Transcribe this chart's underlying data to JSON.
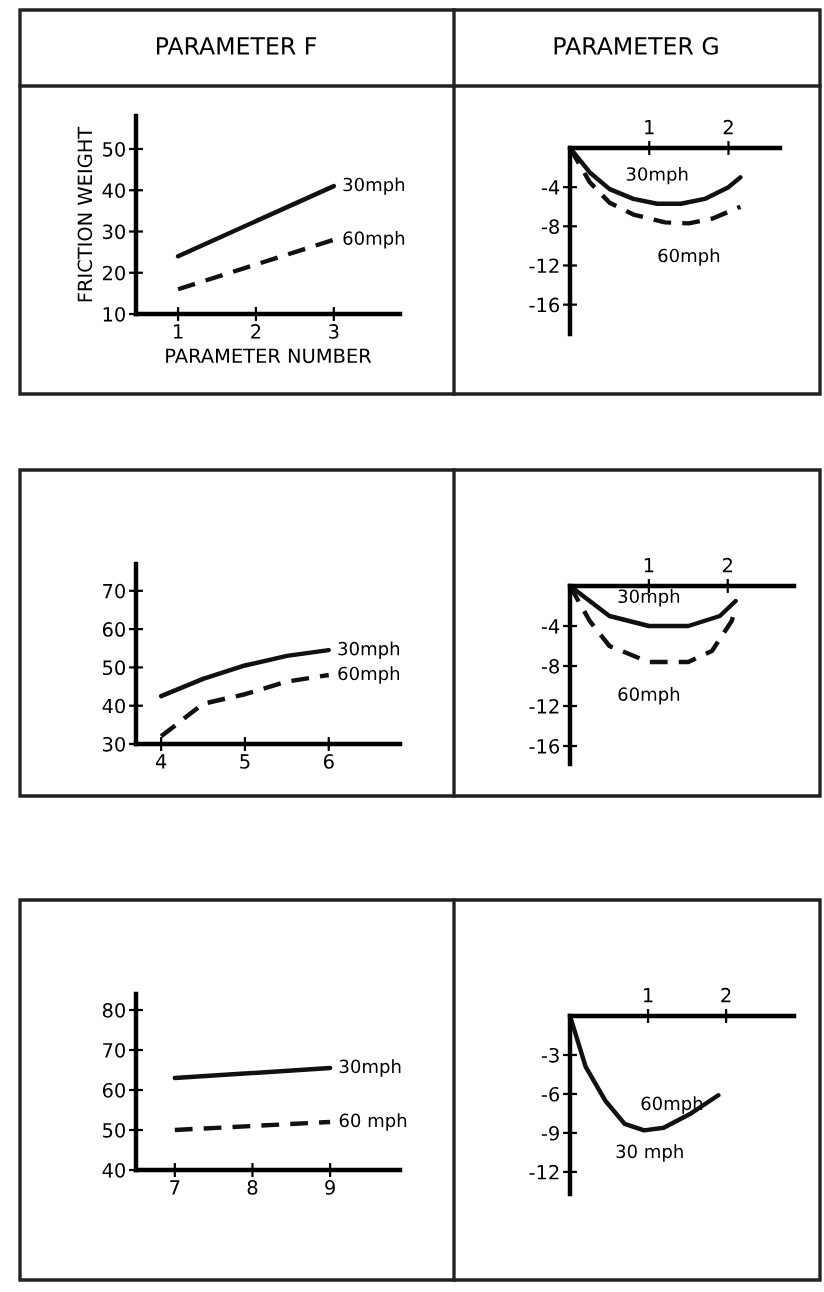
{
  "chart_data": [
    {
      "type": "line",
      "title": "PARAMETER F",
      "xlabel": "PARAMETER NUMBER",
      "ylabel": "FRICTION WEIGHT",
      "xlim": [
        0.46,
        3.85
      ],
      "ylim": [
        10,
        58
      ],
      "xticks": [
        1,
        2,
        3
      ],
      "yticks": [
        10,
        20,
        30,
        40,
        50
      ],
      "series": [
        {
          "name": "30mph",
          "color": "#111111",
          "line_style": "solid",
          "x": [
            1,
            3
          ],
          "values": [
            24,
            41
          ]
        },
        {
          "name": "60mph",
          "color": "#111111",
          "line_style": "dashed",
          "x": [
            1,
            3
          ],
          "values": [
            16,
            28
          ]
        }
      ]
    },
    {
      "type": "line",
      "title": "PARAMETER G",
      "xlim": [
        0,
        2.65
      ],
      "ylim": [
        -19,
        0
      ],
      "xticks": [
        1,
        2
      ],
      "yticks": [
        -4,
        -8,
        -12,
        -16
      ],
      "series": [
        {
          "name": "30mph",
          "color": "#111111",
          "line_style": "solid",
          "x": [
            0,
            0.25,
            0.5,
            0.8,
            1.1,
            1.4,
            1.7,
            2.0,
            2.15
          ],
          "values": [
            0,
            -2.5,
            -4.2,
            -5.2,
            -5.7,
            -5.7,
            -5.2,
            -4,
            -3
          ]
        },
        {
          "name": "60mph",
          "color": "#111111",
          "line_style": "dashed",
          "x": [
            0,
            0.25,
            0.5,
            0.8,
            1.2,
            1.5,
            1.8,
            2.15
          ],
          "values": [
            0,
            -3.5,
            -5.6,
            -6.8,
            -7.6,
            -7.7,
            -7.2,
            -6
          ]
        }
      ]
    },
    {
      "type": "line",
      "xlim": [
        3.7,
        6.85
      ],
      "ylim": [
        30,
        77
      ],
      "xticks": [
        4,
        5,
        6
      ],
      "yticks": [
        30,
        40,
        50,
        60,
        70
      ],
      "series": [
        {
          "name": "30mph",
          "color": "#111111",
          "line_style": "solid",
          "x": [
            4,
            4.5,
            5,
            5.5,
            6
          ],
          "values": [
            42.5,
            47,
            50.5,
            53,
            54.5
          ]
        },
        {
          "name": "60mph",
          "color": "#111111",
          "line_style": "dashed",
          "x": [
            4,
            4.5,
            5,
            5.5,
            6
          ],
          "values": [
            32,
            40.5,
            43,
            46.3,
            48
          ]
        }
      ]
    },
    {
      "type": "line",
      "xlim": [
        0,
        2.84
      ],
      "ylim": [
        -17.8,
        0
      ],
      "xticks": [
        1,
        2
      ],
      "yticks": [
        -4,
        -8,
        -12,
        -16
      ],
      "series": [
        {
          "name": "30mph",
          "color": "#111111",
          "line_style": "solid",
          "x": [
            0,
            0.5,
            1,
            1.5,
            1.9,
            2.1
          ],
          "values": [
            0,
            -3,
            -4,
            -4,
            -3,
            -1.5
          ]
        },
        {
          "name": "60mph",
          "color": "#111111",
          "line_style": "dashed",
          "x": [
            0,
            0.25,
            0.5,
            1,
            1.5,
            1.8,
            2.05,
            2.1
          ],
          "values": [
            0,
            -3.5,
            -6,
            -7.6,
            -7.6,
            -6.5,
            -3.5,
            -2.2
          ]
        }
      ]
    },
    {
      "type": "line",
      "xlim": [
        6.5,
        9.9
      ],
      "ylim": [
        40,
        84
      ],
      "xticks": [
        7,
        8,
        9
      ],
      "yticks": [
        40,
        50,
        60,
        70,
        80
      ],
      "series": [
        {
          "name": "30mph",
          "color": "#111111",
          "line_style": "solid",
          "x": [
            7,
            9
          ],
          "values": [
            63,
            65.5
          ]
        },
        {
          "name": "60 mph",
          "color": "#111111",
          "line_style": "dashed",
          "x": [
            7,
            9
          ],
          "values": [
            50,
            52
          ]
        }
      ]
    },
    {
      "type": "line",
      "xlim": [
        0,
        2.87
      ],
      "ylim": [
        -13.7,
        0
      ],
      "xticks": [
        1,
        2
      ],
      "yticks": [
        -3,
        -6,
        -9,
        -12
      ],
      "series": [
        {
          "color": "#111111",
          "line_style": "solid",
          "x": [
            0,
            0.2,
            0.45,
            0.7,
            0.95,
            1.2,
            1.55,
            1.9
          ],
          "values": [
            0,
            -3.9,
            -6.5,
            -8.3,
            -8.8,
            -8.6,
            -7.5,
            -6.1
          ]
        }
      ],
      "annotations": [
        "60mph",
        "30 mph"
      ]
    }
  ]
}
